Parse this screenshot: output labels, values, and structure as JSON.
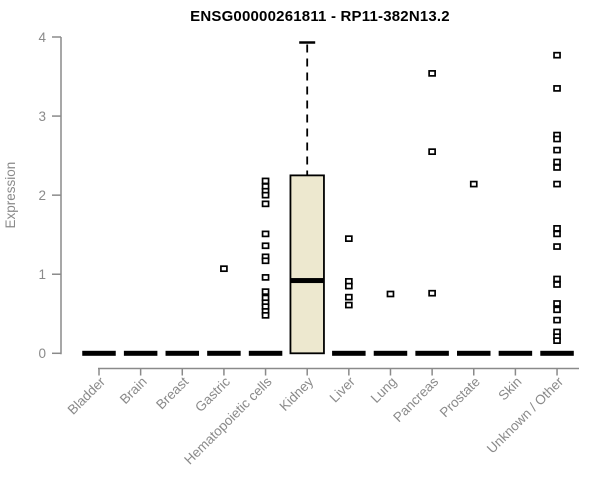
{
  "chart_data": {
    "type": "boxplot",
    "title": "ENSG00000261811 - RP11-382N13.2",
    "ylabel": "Expression",
    "xlabel": "",
    "ylim": [
      0,
      4
    ],
    "yticks": [
      0,
      1,
      2,
      3,
      4
    ],
    "grid": false,
    "legend": "none",
    "colors": {
      "box_fill": "#ede8cf",
      "box_stroke": "#000000",
      "median": "#000000",
      "outlier_fill": "#ffffff",
      "outlier_stroke": "#000000",
      "axis": "#8a8a8a",
      "title": "#000000"
    },
    "categories": [
      "Bladder",
      "Brain",
      "Breast",
      "Gastric",
      "Hematopoietic cells",
      "Kidney",
      "Liver",
      "Lung",
      "Pancreas",
      "Prostate",
      "Skin",
      "Unknown / Other"
    ],
    "series": [
      {
        "category": "Bladder",
        "box": {
          "q1": 0,
          "median": 0,
          "q3": 0,
          "whisker_low": 0,
          "whisker_high": 0
        },
        "outliers": []
      },
      {
        "category": "Brain",
        "box": {
          "q1": 0,
          "median": 0,
          "q3": 0,
          "whisker_low": 0,
          "whisker_high": 0
        },
        "outliers": []
      },
      {
        "category": "Breast",
        "box": {
          "q1": 0,
          "median": 0,
          "q3": 0,
          "whisker_low": 0,
          "whisker_high": 0
        },
        "outliers": []
      },
      {
        "category": "Gastric",
        "box": {
          "q1": 0,
          "median": 0,
          "q3": 0,
          "whisker_low": 0,
          "whisker_high": 0
        },
        "outliers": [
          1.07
        ]
      },
      {
        "category": "Hematopoietic cells",
        "box": {
          "q1": 0,
          "median": 0,
          "q3": 0,
          "whisker_low": 0,
          "whisker_high": 0
        },
        "outliers": [
          2.18,
          2.11,
          2.05,
          2.0,
          1.89,
          1.51,
          1.36,
          1.22,
          1.17,
          0.96,
          0.78,
          0.7,
          0.64,
          0.59,
          0.53,
          0.48
        ]
      },
      {
        "category": "Kidney",
        "box": {
          "q1": 0,
          "median": 0.92,
          "q3": 2.25,
          "whisker_low": 0,
          "whisker_high": 3.93
        },
        "outliers": []
      },
      {
        "category": "Liver",
        "box": {
          "q1": 0,
          "median": 0,
          "q3": 0,
          "whisker_low": 0,
          "whisker_high": 0
        },
        "outliers": [
          1.45,
          0.91,
          0.85,
          0.71,
          0.61
        ]
      },
      {
        "category": "Lung",
        "box": {
          "q1": 0,
          "median": 0,
          "q3": 0,
          "whisker_low": 0,
          "whisker_high": 0
        },
        "outliers": [
          0.75
        ]
      },
      {
        "category": "Pancreas",
        "box": {
          "q1": 0,
          "median": 0,
          "q3": 0,
          "whisker_low": 0,
          "whisker_high": 0
        },
        "outliers": [
          3.54,
          2.55,
          0.76
        ]
      },
      {
        "category": "Prostate",
        "box": {
          "q1": 0,
          "median": 0,
          "q3": 0,
          "whisker_low": 0,
          "whisker_high": 0
        },
        "outliers": [
          2.14
        ]
      },
      {
        "category": "Skin",
        "box": {
          "q1": 0,
          "median": 0,
          "q3": 0,
          "whisker_low": 0,
          "whisker_high": 0
        },
        "outliers": []
      },
      {
        "category": "Unknown / Other",
        "box": {
          "q1": 0,
          "median": 0,
          "q3": 0,
          "whisker_low": 0,
          "whisker_high": 0
        },
        "outliers": [
          3.77,
          3.35,
          2.76,
          2.71,
          2.57,
          2.42,
          2.35,
          2.14,
          1.58,
          1.51,
          1.35,
          0.94,
          0.87,
          0.63,
          0.55,
          0.42,
          0.27,
          0.21,
          0.16
        ]
      }
    ]
  }
}
